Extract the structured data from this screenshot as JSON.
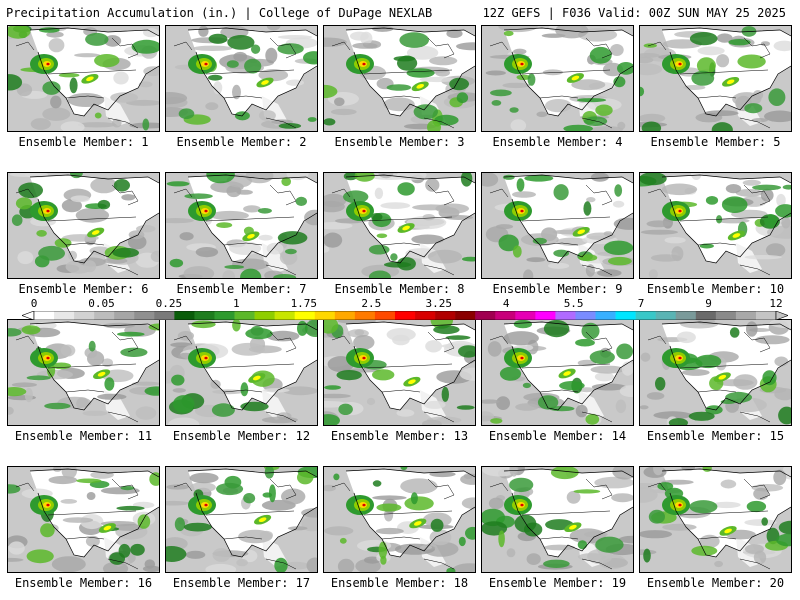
{
  "header": {
    "left_title": "Precipitation Accumulation (in.) | College of DuPage NEXLAB",
    "right_title": "12Z GEFS | F036 Valid: 00Z SUN MAY 25 2025"
  },
  "panels": [
    {
      "label": "Ensemble Member: 1"
    },
    {
      "label": "Ensemble Member: 2"
    },
    {
      "label": "Ensemble Member: 3"
    },
    {
      "label": "Ensemble Member: 4"
    },
    {
      "label": "Ensemble Member: 5"
    },
    {
      "label": "Ensemble Member: 6"
    },
    {
      "label": "Ensemble Member: 7"
    },
    {
      "label": "Ensemble Member: 8"
    },
    {
      "label": "Ensemble Member: 9"
    },
    {
      "label": "Ensemble Member: 10"
    },
    {
      "label": "Ensemble Member: 11"
    },
    {
      "label": "Ensemble Member: 12"
    },
    {
      "label": "Ensemble Member: 13"
    },
    {
      "label": "Ensemble Member: 14"
    },
    {
      "label": "Ensemble Member: 15"
    },
    {
      "label": "Ensemble Member: 16"
    },
    {
      "label": "Ensemble Member: 17"
    },
    {
      "label": "Ensemble Member: 18"
    },
    {
      "label": "Ensemble Member: 19"
    },
    {
      "label": "Ensemble Member: 20"
    }
  ],
  "colorbar": {
    "labels": [
      "0",
      "0.05",
      "0.25",
      "1",
      "1.75",
      "2.5",
      "3.25",
      "4",
      "5.5",
      "7",
      "9",
      "12"
    ],
    "colors": [
      "#ffffff",
      "#e8e8e8",
      "#d2d2d2",
      "#bcbcbc",
      "#a6a6a6",
      "#909090",
      "#7a7a7a",
      "#0a5d0a",
      "#1e7d1e",
      "#2e9a2e",
      "#5cb82a",
      "#8fce00",
      "#c8e600",
      "#ffff00",
      "#ffd800",
      "#ffa800",
      "#ff7a00",
      "#ff4a00",
      "#ff0000",
      "#d80000",
      "#b00000",
      "#8a0000",
      "#a00050",
      "#c8007a",
      "#e600b4",
      "#ff00ff",
      "#b06bff",
      "#7a8cff",
      "#38b0ff",
      "#00e6ff",
      "#38c8c8",
      "#5ab4b4",
      "#7a9a9a",
      "#6a6a6a",
      "#8a8a8a",
      "#a8a8a8",
      "#c4c4c4"
    ]
  }
}
